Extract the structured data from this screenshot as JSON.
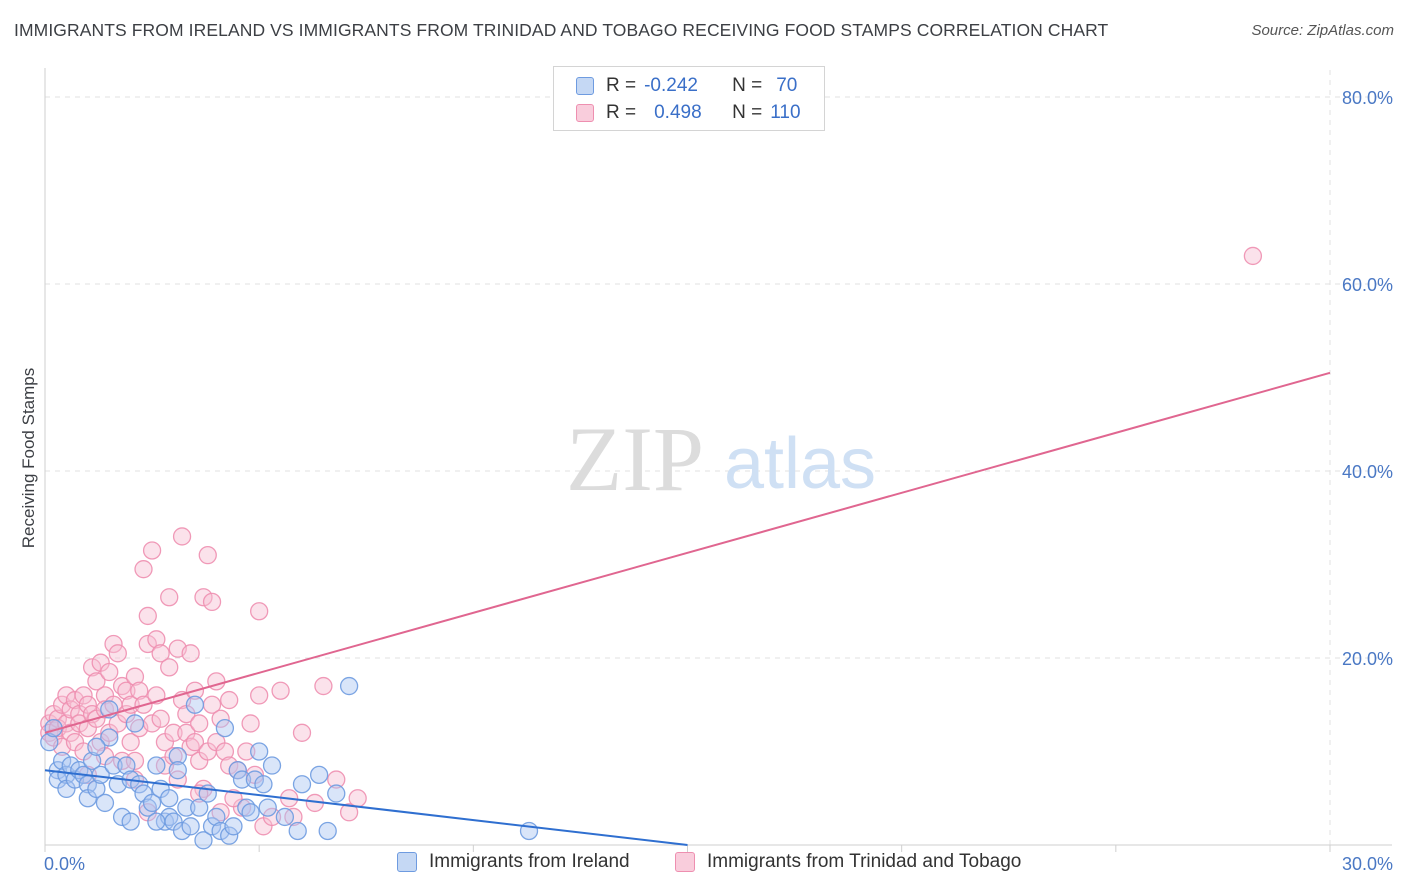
{
  "header": {
    "title": "IMMIGRANTS FROM IRELAND VS IMMIGRANTS FROM TRINIDAD AND TOBAGO RECEIVING FOOD STAMPS CORRELATION CHART",
    "source": "Source: ZipAtlas.com"
  },
  "watermark": {
    "zip": "ZIP",
    "atlas": "atlas"
  },
  "legend": {
    "rows": [
      {
        "r_label": "R =",
        "r_value": "-0.242",
        "n_label": "N =",
        "n_value": "70"
      },
      {
        "r_label": "R =",
        "r_value": "0.498",
        "n_label": "N =",
        "n_value": "110"
      }
    ]
  },
  "colors": {
    "ireland": "#6e9be0",
    "ireland_fill": "#aac6f2",
    "trinidad": "#ee8fb0",
    "trinidad_fill": "#f7bfd2",
    "ireland_line": "#2f6fd0",
    "trinidad_line": "#e06690",
    "tick_text": "#4a78c4"
  },
  "chart_data": {
    "type": "scatter",
    "title": "IMMIGRANTS FROM IRELAND VS IMMIGRANTS FROM TRINIDAD AND TOBAGO RECEIVING FOOD STAMPS CORRELATION CHART",
    "xlabel": "",
    "ylabel": "Receiving Food Stamps",
    "xlim": [
      0,
      30
    ],
    "ylim": [
      0,
      80
    ],
    "x_ticks": [
      "0.0%",
      "30.0%"
    ],
    "y_ticks": [
      "20.0%",
      "40.0%",
      "60.0%",
      "80.0%"
    ],
    "y_tick_values": [
      20,
      40,
      60,
      80
    ],
    "grid": true,
    "legend_placement": "bottom",
    "series": [
      {
        "name": "Immigrants from Ireland",
        "color": "#6e9be0",
        "trend": [
          [
            0,
            8
          ],
          [
            15,
            0
          ]
        ],
        "points": [
          [
            0.1,
            11
          ],
          [
            0.2,
            12.5
          ],
          [
            0.3,
            8
          ],
          [
            0.3,
            7
          ],
          [
            0.4,
            9
          ],
          [
            0.5,
            7.5
          ],
          [
            0.5,
            6
          ],
          [
            0.6,
            8.5
          ],
          [
            0.7,
            7
          ],
          [
            0.8,
            8
          ],
          [
            0.9,
            7.5
          ],
          [
            1.0,
            6.5
          ],
          [
            1.0,
            5
          ],
          [
            1.1,
            9
          ],
          [
            1.2,
            6
          ],
          [
            1.3,
            7.5
          ],
          [
            1.4,
            4.5
          ],
          [
            1.5,
            11.5
          ],
          [
            1.5,
            14.5
          ],
          [
            1.6,
            8.5
          ],
          [
            1.7,
            6.5
          ],
          [
            1.8,
            3
          ],
          [
            1.9,
            8.5
          ],
          [
            2.0,
            2.5
          ],
          [
            2.0,
            7
          ],
          [
            2.1,
            13
          ],
          [
            2.2,
            6.5
          ],
          [
            2.3,
            5.5
          ],
          [
            2.4,
            4
          ],
          [
            2.5,
            4.5
          ],
          [
            2.6,
            8.5
          ],
          [
            2.7,
            6
          ],
          [
            2.8,
            2.5
          ],
          [
            2.9,
            3
          ],
          [
            2.9,
            5
          ],
          [
            3.0,
            2.5
          ],
          [
            3.1,
            9.5
          ],
          [
            3.1,
            8
          ],
          [
            3.2,
            1.5
          ],
          [
            3.3,
            4
          ],
          [
            3.4,
            2
          ],
          [
            3.5,
            15
          ],
          [
            3.6,
            4
          ],
          [
            3.7,
            0.5
          ],
          [
            3.8,
            5.5
          ],
          [
            3.9,
            2
          ],
          [
            4.0,
            3
          ],
          [
            4.1,
            1.5
          ],
          [
            4.2,
            12.5
          ],
          [
            4.3,
            1
          ],
          [
            4.4,
            2
          ],
          [
            4.5,
            8
          ],
          [
            4.6,
            7
          ],
          [
            4.7,
            4
          ],
          [
            4.8,
            3.5
          ],
          [
            4.9,
            7
          ],
          [
            5.0,
            10
          ],
          [
            5.1,
            6.5
          ],
          [
            5.2,
            4
          ],
          [
            5.3,
            8.5
          ],
          [
            5.6,
            3
          ],
          [
            5.9,
            1.5
          ],
          [
            6.0,
            6.5
          ],
          [
            6.4,
            7.5
          ],
          [
            6.6,
            1.5
          ],
          [
            6.8,
            5.5
          ],
          [
            7.1,
            17
          ],
          [
            11.3,
            1.5
          ],
          [
            1.2,
            10.5
          ],
          [
            2.6,
            2.5
          ]
        ]
      },
      {
        "name": "Immigrants from Trinidad and Tobago",
        "color": "#ee8fb0",
        "trend": [
          [
            0,
            12
          ],
          [
            30,
            50.5
          ]
        ],
        "points": [
          [
            0.1,
            13
          ],
          [
            0.1,
            12
          ],
          [
            0.2,
            11.5
          ],
          [
            0.2,
            14
          ],
          [
            0.3,
            13.5
          ],
          [
            0.3,
            12.5
          ],
          [
            0.4,
            15
          ],
          [
            0.4,
            10.5
          ],
          [
            0.5,
            16
          ],
          [
            0.5,
            13
          ],
          [
            0.6,
            14.5
          ],
          [
            0.6,
            12
          ],
          [
            0.7,
            15.5
          ],
          [
            0.7,
            11
          ],
          [
            0.8,
            14
          ],
          [
            0.8,
            13
          ],
          [
            0.9,
            16
          ],
          [
            0.9,
            10
          ],
          [
            1.0,
            15
          ],
          [
            1.0,
            12.5
          ],
          [
            1.1,
            19
          ],
          [
            1.1,
            14
          ],
          [
            1.2,
            17.5
          ],
          [
            1.2,
            13.5
          ],
          [
            1.3,
            19.5
          ],
          [
            1.3,
            11
          ],
          [
            1.4,
            16
          ],
          [
            1.4,
            14.5
          ],
          [
            1.5,
            18.5
          ],
          [
            1.5,
            12
          ],
          [
            1.6,
            21.5
          ],
          [
            1.6,
            15
          ],
          [
            1.7,
            20.5
          ],
          [
            1.7,
            13
          ],
          [
            1.8,
            17
          ],
          [
            1.8,
            9
          ],
          [
            1.9,
            16.5
          ],
          [
            1.9,
            14
          ],
          [
            2.0,
            15
          ],
          [
            2.0,
            11
          ],
          [
            2.1,
            18
          ],
          [
            2.1,
            7
          ],
          [
            2.2,
            16.5
          ],
          [
            2.2,
            12.5
          ],
          [
            2.3,
            29.5
          ],
          [
            2.3,
            15
          ],
          [
            2.4,
            24.5
          ],
          [
            2.4,
            21.5
          ],
          [
            2.5,
            31.5
          ],
          [
            2.5,
            13
          ],
          [
            2.6,
            22
          ],
          [
            2.6,
            16
          ],
          [
            2.7,
            20.5
          ],
          [
            2.7,
            13.5
          ],
          [
            2.8,
            8.5
          ],
          [
            2.8,
            11
          ],
          [
            2.9,
            26.5
          ],
          [
            2.9,
            19
          ],
          [
            3.0,
            9.5
          ],
          [
            3.0,
            12
          ],
          [
            3.1,
            21
          ],
          [
            3.1,
            7
          ],
          [
            3.2,
            33
          ],
          [
            3.2,
            15.5
          ],
          [
            3.3,
            12
          ],
          [
            3.3,
            14
          ],
          [
            3.4,
            10.5
          ],
          [
            3.4,
            20.5
          ],
          [
            3.5,
            11
          ],
          [
            3.5,
            16.5
          ],
          [
            3.6,
            9
          ],
          [
            3.6,
            13
          ],
          [
            3.7,
            26.5
          ],
          [
            3.7,
            6
          ],
          [
            3.8,
            31
          ],
          [
            3.8,
            10
          ],
          [
            3.9,
            26
          ],
          [
            3.9,
            15
          ],
          [
            4.0,
            17.5
          ],
          [
            4.0,
            11
          ],
          [
            4.1,
            13.5
          ],
          [
            4.1,
            3.5
          ],
          [
            4.2,
            10
          ],
          [
            4.3,
            15.5
          ],
          [
            4.3,
            8.5
          ],
          [
            4.5,
            8
          ],
          [
            4.6,
            4
          ],
          [
            4.7,
            10
          ],
          [
            4.8,
            13
          ],
          [
            4.9,
            7.5
          ],
          [
            5.0,
            25
          ],
          [
            5.0,
            16
          ],
          [
            5.1,
            2
          ],
          [
            5.3,
            3
          ],
          [
            5.5,
            16.5
          ],
          [
            5.7,
            5
          ],
          [
            5.8,
            3
          ],
          [
            6.3,
            4.5
          ],
          [
            6.5,
            17
          ],
          [
            6.8,
            7
          ],
          [
            7.1,
            3.5
          ],
          [
            7.3,
            5
          ],
          [
            1.0,
            7.5
          ],
          [
            2.4,
            3.5
          ],
          [
            4.4,
            5
          ],
          [
            6.0,
            12
          ],
          [
            28.2,
            63
          ],
          [
            1.4,
            9.5
          ],
          [
            2.1,
            9
          ],
          [
            3.6,
            5.5
          ]
        ]
      }
    ]
  },
  "bottom_legend": {
    "items": [
      {
        "label": "Immigrants from Ireland"
      },
      {
        "label": "Immigrants from Trinidad and Tobago"
      }
    ]
  }
}
